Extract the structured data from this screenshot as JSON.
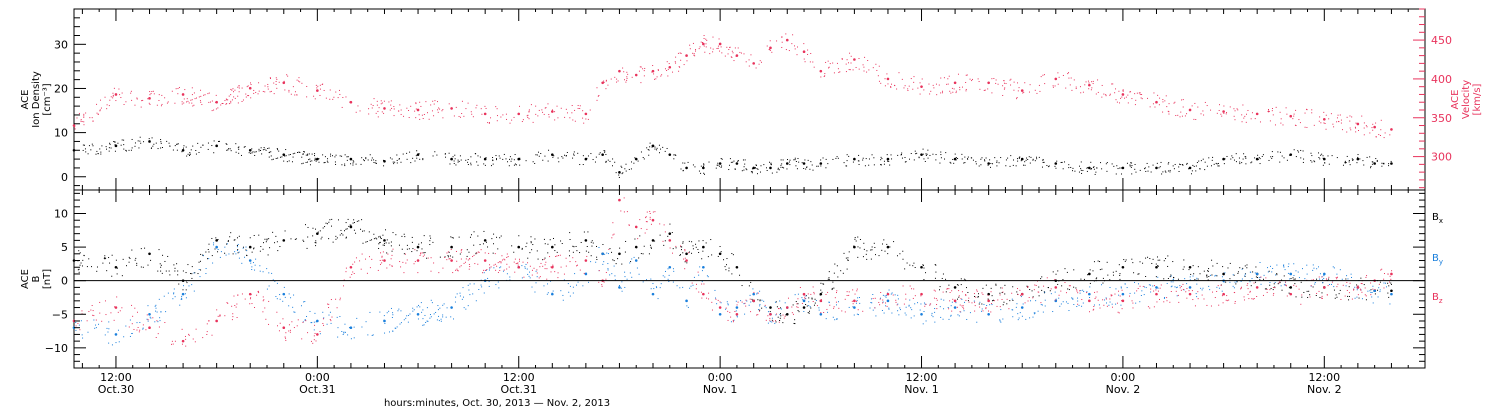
{
  "figure": {
    "x_axis_title": "hours:minutes, Oct. 30, 2013 — Nov.  2, 2013"
  },
  "colors": {
    "black": "#000000",
    "pink": "#e8335c",
    "blue": "#1a7fdc"
  },
  "chart_data": [
    {
      "type": "scatter",
      "panel": "top",
      "ylabel_lines": [
        "ACE",
        "Ion Density",
        "[cm⁻³]"
      ],
      "y_ticks": [
        "0",
        "10",
        "20",
        "30"
      ],
      "ylim": [
        -3,
        38
      ],
      "y2label_lines": [
        "ACE",
        "Velocity",
        "[km/s]"
      ],
      "y2_ticks": [
        "300",
        "350",
        "400",
        "450"
      ],
      "y2lim": [
        257,
        490
      ],
      "xlim": [
        3.5,
        84
      ],
      "series": [
        {
          "color": "pink",
          "axis": "right",
          "x": [
            3.5,
            6,
            8,
            10,
            12,
            14,
            16,
            18,
            20,
            22,
            24,
            26,
            28,
            30,
            32,
            34,
            35,
            36,
            37,
            38,
            39,
            40,
            41,
            42,
            43,
            44,
            45,
            46,
            47,
            48,
            50,
            52,
            54,
            56,
            58,
            60,
            62,
            64,
            66,
            68,
            70,
            72,
            74,
            76,
            78,
            80,
            81,
            82
          ],
          "y": [
            340,
            380,
            375,
            380,
            370,
            388,
            395,
            385,
            370,
            362,
            360,
            362,
            355,
            355,
            358,
            355,
            395,
            410,
            405,
            410,
            415,
            430,
            445,
            445,
            430,
            420,
            440,
            450,
            435,
            410,
            425,
            400,
            390,
            395,
            395,
            385,
            400,
            392,
            380,
            370,
            360,
            358,
            355,
            352,
            348,
            342,
            338,
            335
          ]
        },
        {
          "color": "black",
          "axis": "left",
          "x": [
            3.5,
            6,
            8,
            10,
            12,
            14,
            16,
            18,
            20,
            22,
            24,
            26,
            28,
            30,
            32,
            34,
            35,
            36,
            37,
            38,
            39,
            40,
            41,
            42,
            43,
            44,
            45,
            46,
            47,
            48,
            50,
            52,
            54,
            56,
            58,
            60,
            62,
            64,
            66,
            68,
            70,
            72,
            74,
            76,
            78,
            80,
            81,
            82
          ],
          "y": [
            6,
            7,
            8,
            6,
            7,
            6,
            5,
            4,
            4,
            3.5,
            5,
            4,
            4,
            4,
            5,
            4,
            5,
            1,
            4,
            7,
            5,
            2,
            2,
            3,
            3,
            2,
            2,
            3,
            3,
            3,
            4,
            4,
            5,
            4,
            3,
            4,
            3,
            2,
            2,
            2,
            2,
            4,
            4,
            5,
            4,
            4,
            3,
            3
          ]
        }
      ]
    },
    {
      "type": "scatter",
      "panel": "bottom",
      "ylabel_lines": [
        "ACE",
        "B",
        "[nT]"
      ],
      "y_ticks": [
        "−10",
        "−5",
        "0",
        "5",
        "10"
      ],
      "ylim": [
        -13,
        13.5
      ],
      "xlim": [
        3.5,
        84
      ],
      "legend": [
        "Bx",
        "By",
        "Bz"
      ],
      "series": [
        {
          "name": "Bx",
          "color": "black",
          "x": [
            3.5,
            6,
            8,
            10,
            12,
            14,
            16,
            18,
            20,
            22,
            24,
            26,
            28,
            30,
            32,
            34,
            35,
            36,
            37,
            38,
            39,
            40,
            41,
            42,
            43,
            44,
            45,
            46,
            47,
            48,
            50,
            52,
            54,
            56,
            58,
            60,
            62,
            64,
            66,
            68,
            70,
            72,
            74,
            76,
            78,
            80,
            81,
            82
          ],
          "y": [
            3,
            2,
            4,
            0,
            6,
            5,
            6,
            7,
            8,
            6,
            5,
            5,
            6,
            5,
            5,
            6,
            4,
            4,
            5,
            6,
            7,
            4,
            5,
            4,
            2,
            -3,
            -4,
            -5,
            -4,
            -2,
            5,
            5,
            2,
            -1,
            -2,
            -2,
            0,
            1,
            2,
            2,
            2,
            1,
            1,
            -1,
            -1,
            -1,
            -1.5,
            -1.5
          ]
        },
        {
          "name": "By",
          "color": "blue",
          "x": [
            3.5,
            6,
            8,
            10,
            12,
            14,
            16,
            18,
            20,
            22,
            24,
            26,
            28,
            30,
            32,
            34,
            35,
            36,
            37,
            38,
            39,
            40,
            41,
            42,
            43,
            44,
            45,
            46,
            47,
            48,
            50,
            52,
            54,
            56,
            58,
            60,
            62,
            64,
            66,
            68,
            70,
            72,
            74,
            76,
            78,
            80,
            81,
            82
          ],
          "y": [
            -7,
            -8,
            -5,
            -2,
            5,
            3,
            -2,
            -6,
            -7,
            -6,
            -5,
            -4,
            0,
            2,
            -2,
            1,
            4,
            -1,
            3,
            -2,
            2,
            -3,
            2,
            -5,
            -4,
            -2,
            -5,
            -4,
            -3,
            -5,
            -4,
            -3,
            -5,
            -4,
            -5,
            -4,
            -3,
            -2,
            -2,
            -1,
            -1,
            0,
            1,
            1,
            1,
            -1,
            -1.5,
            -2
          ]
        },
        {
          "name": "Bz",
          "color": "pink",
          "x": [
            3.5,
            6,
            8,
            10,
            12,
            14,
            16,
            18,
            20,
            22,
            24,
            26,
            28,
            30,
            32,
            34,
            35,
            36,
            37,
            38,
            39,
            40,
            41,
            42,
            43,
            44,
            45,
            46,
            47,
            48,
            50,
            52,
            54,
            56,
            58,
            60,
            62,
            64,
            66,
            68,
            70,
            72,
            74,
            76,
            78,
            80,
            81,
            82
          ],
          "y": [
            -6,
            -4,
            -7,
            -9,
            -6,
            -2,
            -7,
            -8,
            2,
            3,
            3,
            3,
            3,
            2,
            2,
            3,
            0,
            12,
            8,
            9,
            6,
            3,
            -2,
            -4,
            -5,
            -3,
            -5,
            -4,
            -2,
            -3,
            -3,
            -2,
            -2,
            -3,
            -3,
            -2,
            -1,
            -3,
            -3,
            -2,
            -2,
            -2,
            -1,
            -2,
            -1,
            -1,
            0,
            1
          ]
        }
      ]
    }
  ],
  "x_ticks": [
    {
      "x": 6,
      "line1": "12:00",
      "line2": "Oct.30"
    },
    {
      "x": 18,
      "line1": "0:00",
      "line2": "Oct.31"
    },
    {
      "x": 30,
      "line1": "12:00",
      "line2": "Oct.31"
    },
    {
      "x": 42,
      "line1": "0:00",
      "line2": "Nov. 1"
    },
    {
      "x": 54,
      "line1": "12:00",
      "line2": "Nov. 1"
    },
    {
      "x": 66,
      "line1": "0:00",
      "line2": "Nov. 2"
    },
    {
      "x": 78,
      "line1": "12:00",
      "line2": "Nov. 2"
    }
  ]
}
